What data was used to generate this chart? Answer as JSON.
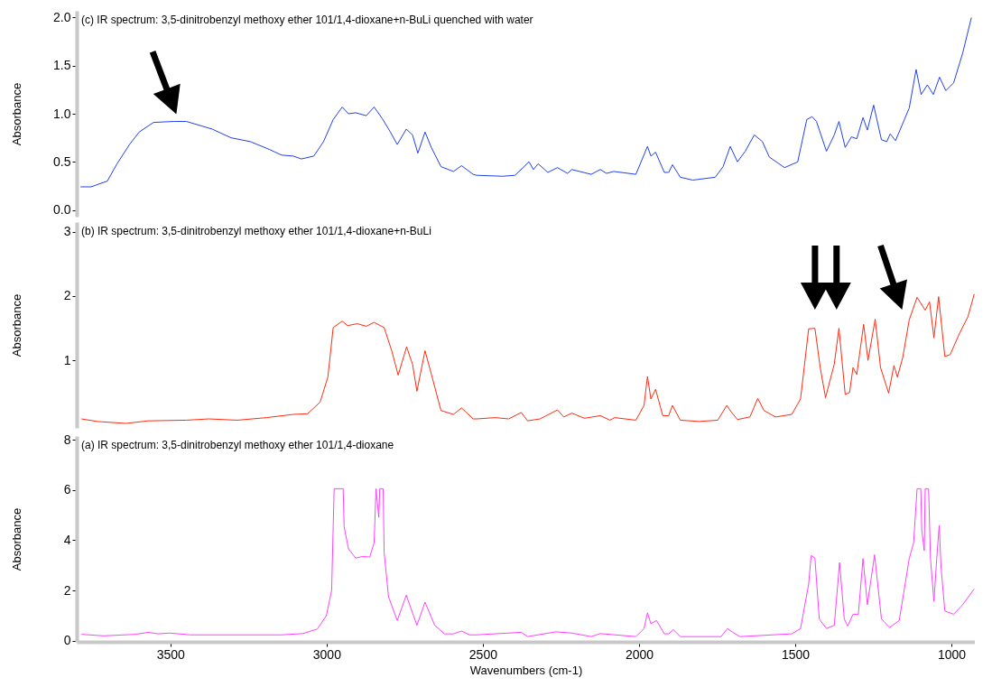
{
  "chart_data": [
    {
      "type": "line",
      "title": "(c) IR spectrum: 3,5-dinitrobenzyl methoxy ether 101/1,4-dioxane+n-BuLi quenched with water",
      "ylabel": "Absorbance",
      "xlim": [
        3800,
        925
      ],
      "ylim": [
        -0.07,
        2.07
      ],
      "yticks": [
        {
          "value": 0,
          "label": "0.0"
        },
        {
          "value": 0.5,
          "label": "0.5"
        },
        {
          "value": 1,
          "label": "1.0"
        },
        {
          "value": 1.5,
          "label": "1.5"
        },
        {
          "value": 2,
          "label": "2.0"
        }
      ],
      "tick_labels": "y",
      "x": [
        3788,
        3754,
        3702,
        3671,
        3631,
        3600,
        3554,
        3489,
        3449,
        3366,
        3306,
        3244,
        3184,
        3144,
        3107,
        3081,
        3041,
        3010,
        2979,
        2950,
        2930,
        2907,
        2873,
        2848,
        2822,
        2796,
        2774,
        2745,
        2725,
        2708,
        2685,
        2665,
        2634,
        2594,
        2568,
        2531,
        2520,
        2437,
        2397,
        2352,
        2338,
        2323,
        2292,
        2261,
        2229,
        2215,
        2153,
        2124,
        2104,
        2081,
        2010,
        1973,
        1962,
        1947,
        1919,
        1905,
        1893,
        1868,
        1828,
        1756,
        1731,
        1708,
        1685,
        1660,
        1631,
        1605,
        1583,
        1534,
        1492,
        1463,
        1446,
        1432,
        1400,
        1375,
        1360,
        1340,
        1320,
        1303,
        1283,
        1269,
        1249,
        1224,
        1207,
        1196,
        1179,
        1135,
        1113,
        1097,
        1077,
        1058,
        1038,
        1018,
        993,
        964,
        936
      ],
      "series": [
        {
          "color": "#2040f0",
          "values": [
            0.24,
            0.24,
            0.3,
            0.48,
            0.68,
            0.81,
            0.91,
            0.92,
            0.92,
            0.84,
            0.75,
            0.71,
            0.63,
            0.57,
            0.56,
            0.53,
            0.56,
            0.71,
            0.94,
            1.07,
            1.0,
            1.01,
            0.98,
            1.07,
            0.95,
            0.81,
            0.68,
            0.84,
            0.78,
            0.59,
            0.81,
            0.65,
            0.45,
            0.4,
            0.46,
            0.37,
            0.36,
            0.35,
            0.36,
            0.5,
            0.42,
            0.48,
            0.39,
            0.44,
            0.38,
            0.42,
            0.37,
            0.42,
            0.38,
            0.4,
            0.37,
            0.66,
            0.56,
            0.6,
            0.39,
            0.39,
            0.47,
            0.34,
            0.31,
            0.34,
            0.45,
            0.66,
            0.5,
            0.61,
            0.78,
            0.71,
            0.55,
            0.44,
            0.5,
            0.94,
            0.97,
            0.92,
            0.61,
            0.78,
            0.92,
            0.65,
            0.76,
            0.74,
            0.96,
            0.83,
            1.09,
            0.73,
            0.71,
            0.79,
            0.72,
            1.06,
            1.46,
            1.2,
            1.3,
            1.2,
            1.38,
            1.24,
            1.32,
            1.63,
            2.0
          ]
        }
      ]
    },
    {
      "type": "line",
      "title": "(b) IR spectrum: 3,5-dinitrobenzyl methoxy ether 101/1,4-dioxane+n-BuLi",
      "ylabel": "Absorbance",
      "xlim": [
        3800,
        925
      ],
      "ylim": [
        -0.05,
        3.15
      ],
      "yticks": [
        1,
        2,
        3
      ],
      "tick_labels": "y",
      "x": [
        3785,
        3734,
        3642,
        3571,
        3449,
        3377,
        3286,
        3192,
        3107,
        3061,
        3021,
        2996,
        2979,
        2950,
        2933,
        2902,
        2873,
        2848,
        2816,
        2791,
        2771,
        2744,
        2725,
        2711,
        2685,
        2665,
        2634,
        2594,
        2568,
        2531,
        2520,
        2460,
        2417,
        2377,
        2357,
        2317,
        2261,
        2241,
        2215,
        2175,
        2124,
        2093,
        2078,
        2010,
        1984,
        1973,
        1962,
        1947,
        1924,
        1905,
        1893,
        1868,
        1808,
        1748,
        1719,
        1705,
        1685,
        1645,
        1620,
        1600,
        1563,
        1511,
        1483,
        1457,
        1437,
        1420,
        1403,
        1375,
        1360,
        1340,
        1326,
        1315,
        1303,
        1281,
        1267,
        1244,
        1227,
        1201,
        1184,
        1173,
        1156,
        1135,
        1110,
        1084,
        1070,
        1056,
        1041,
        1021,
        1004,
        975,
        947,
        927
      ],
      "series": [
        {
          "color": "#ff2a10",
          "values": [
            0.09,
            0.05,
            0.02,
            0.06,
            0.07,
            0.09,
            0.07,
            0.11,
            0.16,
            0.17,
            0.35,
            0.74,
            1.51,
            1.61,
            1.54,
            1.57,
            1.53,
            1.59,
            1.51,
            1.14,
            0.77,
            1.21,
            0.94,
            0.52,
            1.15,
            0.79,
            0.22,
            0.16,
            0.26,
            0.09,
            0.09,
            0.11,
            0.09,
            0.19,
            0.06,
            0.09,
            0.23,
            0.12,
            0.18,
            0.1,
            0.14,
            0.07,
            0.11,
            0.07,
            0.3,
            0.75,
            0.4,
            0.55,
            0.14,
            0.14,
            0.3,
            0.07,
            0.05,
            0.07,
            0.3,
            0.2,
            0.08,
            0.12,
            0.41,
            0.22,
            0.12,
            0.16,
            0.4,
            1.49,
            1.5,
            0.89,
            0.42,
            0.94,
            1.5,
            0.47,
            0.5,
            0.89,
            0.78,
            1.56,
            1.0,
            1.64,
            0.89,
            0.49,
            0.92,
            0.74,
            1.04,
            1.63,
            1.98,
            1.78,
            1.91,
            1.35,
            1.99,
            1.06,
            1.09,
            1.41,
            1.68,
            2.03
          ]
        }
      ]
    },
    {
      "type": "line",
      "title": "(a) IR spectrum: 3,5-dinitrobenzyl methoxy ether 101/1,4-dioxane",
      "xlabel": "Wavenumbers (cm-1)",
      "ylabel": "Absorbance",
      "xlim": [
        3800,
        925
      ],
      "ylim": [
        -0.05,
        8.15
      ],
      "xticks": [
        3500,
        3000,
        2500,
        2000,
        1500,
        1000
      ],
      "yticks": [
        0,
        2,
        4,
        6,
        8
      ],
      "x": [
        3785,
        3714,
        3611,
        3571,
        3540,
        3503,
        3437,
        3144,
        3076,
        3030,
        3001,
        2984,
        2976,
        2947,
        2944,
        2930,
        2907,
        2885,
        2862,
        2848,
        2842,
        2833,
        2830,
        2819,
        2816,
        2802,
        2774,
        2745,
        2711,
        2685,
        2654,
        2623,
        2594,
        2568,
        2543,
        2520,
        2377,
        2357,
        2266,
        2215,
        2153,
        2124,
        2010,
        1984,
        1973,
        1962,
        1944,
        1919,
        1905,
        1890,
        1868,
        1737,
        1717,
        1700,
        1677,
        1511,
        1483,
        1457,
        1449,
        1437,
        1423,
        1400,
        1375,
        1358,
        1343,
        1332,
        1315,
        1298,
        1283,
        1269,
        1246,
        1224,
        1198,
        1167,
        1135,
        1121,
        1110,
        1098,
        1095,
        1087,
        1084,
        1073,
        1067,
        1056,
        1047,
        1039,
        1033,
        1021,
        993,
        964,
        927
      ],
      "series": [
        {
          "color": "#ff40ff",
          "values": [
            0.25,
            0.19,
            0.25,
            0.33,
            0.27,
            0.3,
            0.23,
            0.23,
            0.28,
            0.46,
            0.99,
            2.0,
            6.05,
            6.05,
            4.53,
            3.65,
            3.29,
            3.35,
            3.33,
            3.9,
            6.05,
            4.91,
            6.05,
            6.05,
            3.52,
            1.75,
            0.8,
            1.81,
            0.61,
            1.53,
            0.61,
            0.27,
            0.27,
            0.38,
            0.23,
            0.23,
            0.33,
            0.16,
            0.35,
            0.3,
            0.16,
            0.28,
            0.16,
            0.48,
            1.11,
            0.67,
            0.8,
            0.27,
            0.27,
            0.44,
            0.16,
            0.16,
            0.48,
            0.33,
            0.16,
            0.27,
            0.48,
            2.25,
            3.39,
            3.29,
            0.86,
            0.48,
            0.61,
            3.11,
            0.86,
            0.58,
            1.05,
            1.05,
            3.27,
            1.43,
            3.42,
            0.86,
            0.52,
            0.8,
            3.27,
            3.9,
            6.05,
            6.05,
            4.41,
            3.58,
            6.05,
            6.05,
            3.27,
            1.56,
            3.27,
            4.59,
            2.89,
            1.18,
            1.05,
            1.43,
            2.06
          ]
        }
      ]
    }
  ]
}
